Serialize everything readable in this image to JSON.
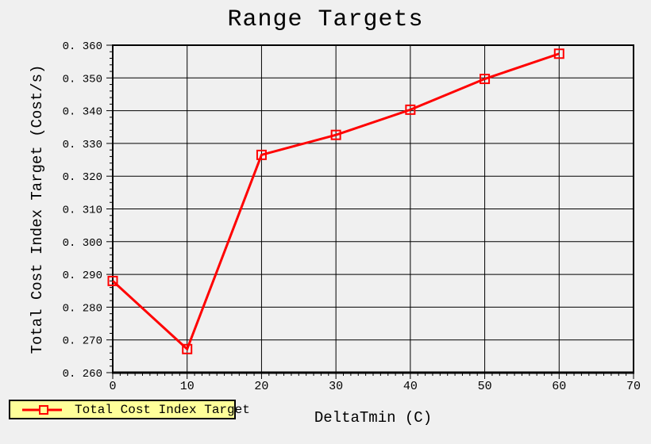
{
  "window": {
    "background": "#f0f0f0"
  },
  "chart_data": {
    "type": "line",
    "title": "Range Targets",
    "xlabel": "DeltaTmin (C)",
    "ylabel": "Total Cost Index Target (Cost/s)",
    "xlim": [
      0,
      70
    ],
    "ylim": [
      0.26,
      0.36
    ],
    "x_major_step": 10,
    "x_minor_step": 1,
    "y_major_step": 0.01,
    "y_minor_step": 0.002,
    "grid": true,
    "x_tick_labels": [
      "0",
      "10",
      "20",
      "30",
      "40",
      "50",
      "60",
      "70"
    ],
    "y_tick_labels": [
      "0. 260",
      "0. 270",
      "0. 280",
      "0. 290",
      "0. 300",
      "0. 310",
      "0. 320",
      "0. 330",
      "0. 340",
      "0. 350",
      "0. 360"
    ],
    "series": [
      {
        "name": "Total Cost Index Target",
        "color": "#ff0000",
        "marker": "open-square",
        "x": [
          0,
          10,
          20,
          30,
          40,
          50,
          60
        ],
        "y": [
          0.288,
          0.2672,
          0.3265,
          0.3326,
          0.3403,
          0.3497,
          0.3574
        ]
      }
    ],
    "legend": {
      "position": "bottom-left",
      "background": "#ffff99",
      "border_color": "#000000"
    }
  },
  "colors": {
    "background": "#f0f0f0",
    "axis": "#000000",
    "grid": "#000000",
    "series_line": "#ff0000",
    "legend_background": "#ffff99",
    "text": "#000000"
  }
}
